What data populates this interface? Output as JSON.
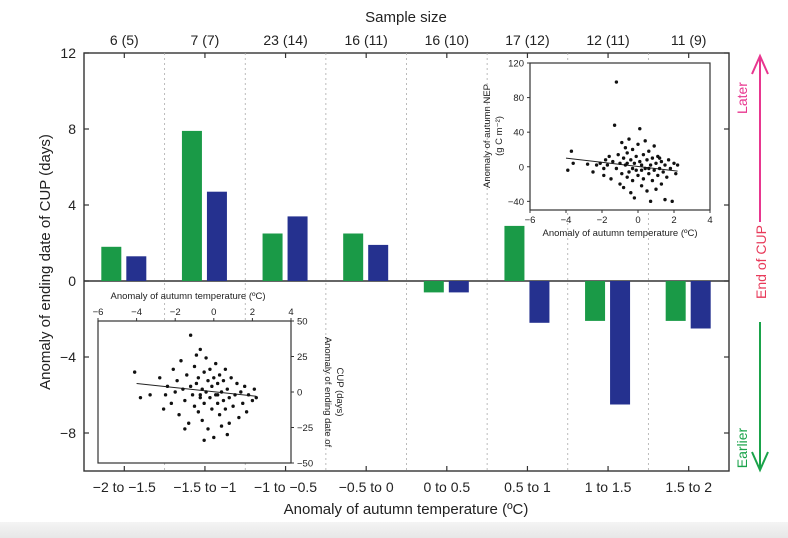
{
  "chart_data": {
    "type": "bar",
    "title": "Sample size",
    "xlabel": "Anomaly of autumn temperature (ºC)",
    "ylabel": "Anomaly of ending date of CUP (days)",
    "ylim": [
      -10,
      12
    ],
    "yticks": [
      "12",
      "8",
      "4",
      "0",
      "−4",
      "−8"
    ],
    "categories": [
      "−2 to −1.5",
      "−1.5 to −1",
      "−1 to −0.5",
      "−0.5 to 0",
      "0 to 0.5",
      "0.5 to 1",
      "1 to 1.5",
      "1.5 to 2"
    ],
    "sample_sizes": [
      "6 (5)",
      "7 (7)",
      "23 (14)",
      "16 (11)",
      "16 (10)",
      "17 (12)",
      "12 (11)",
      "11 (9)"
    ],
    "series": [
      {
        "name": "green",
        "color": "#1a9a47",
        "values": [
          1.8,
          7.9,
          2.5,
          2.5,
          -0.6,
          2.9,
          -2.1,
          -2.1
        ]
      },
      {
        "name": "blue",
        "color": "#25318f",
        "values": [
          1.3,
          4.7,
          3.4,
          1.9,
          -0.6,
          -2.2,
          -6.5,
          -2.5
        ]
      }
    ],
    "side_labels": {
      "later": "Later",
      "end_of_cup": "End of CUP",
      "earlier": "Earlier"
    },
    "side_colors": {
      "later": "#e8368f",
      "middle": "#e83a5a",
      "earlier": "#1aa34a"
    },
    "insets": [
      {
        "type": "scatter",
        "xlabel": "Anomaly of autumn temperature (ºC)",
        "ylabel_line1": "Anomaly of autumn NEP",
        "ylabel_line2": "(g C m⁻²)",
        "xlim": [
          -6,
          4
        ],
        "ylim": [
          -50,
          120
        ],
        "xticks": [
          "−6",
          "−4",
          "−2",
          "0",
          "2",
          "4"
        ],
        "yticks": [
          "120",
          "80",
          "40",
          "0",
          "−40"
        ],
        "trend": [
          [
            -4,
            10
          ],
          [
            2.2,
            -5
          ]
        ],
        "points": [
          [
            -3.9,
            -4
          ],
          [
            -3.7,
            18
          ],
          [
            -3.6,
            4
          ],
          [
            -2.8,
            3
          ],
          [
            -2.5,
            -6
          ],
          [
            -2.3,
            2
          ],
          [
            -2.1,
            4
          ],
          [
            -1.9,
            -10
          ],
          [
            -1.8,
            8
          ],
          [
            -1.7,
            2
          ],
          [
            -1.6,
            12
          ],
          [
            -1.5,
            -14
          ],
          [
            -1.4,
            6
          ],
          [
            -1.3,
            48
          ],
          [
            -1.2,
            -2
          ],
          [
            -1.2,
            98
          ],
          [
            -1.1,
            14
          ],
          [
            -1.0,
            -20
          ],
          [
            -1.0,
            4
          ],
          [
            -0.9,
            28
          ],
          [
            -0.9,
            -8
          ],
          [
            -0.8,
            10
          ],
          [
            -0.8,
            -24
          ],
          [
            -0.7,
            22
          ],
          [
            -0.7,
            2
          ],
          [
            -0.6,
            -12
          ],
          [
            -0.6,
            16
          ],
          [
            -0.5,
            -6
          ],
          [
            -0.5,
            32
          ],
          [
            -0.4,
            -30
          ],
          [
            -0.4,
            8
          ],
          [
            -0.3,
            -16
          ],
          [
            -0.3,
            20
          ],
          [
            -0.2,
            4
          ],
          [
            -0.2,
            -36
          ],
          [
            -0.1,
            12
          ],
          [
            -0.1,
            -4
          ],
          [
            0.0,
            26
          ],
          [
            0.0,
            -10
          ],
          [
            0.1,
            6
          ],
          [
            0.1,
            44
          ],
          [
            0.2,
            -22
          ],
          [
            0.2,
            2
          ],
          [
            0.3,
            14
          ],
          [
            0.3,
            -14
          ],
          [
            0.4,
            -2
          ],
          [
            0.4,
            30
          ],
          [
            0.5,
            8
          ],
          [
            0.5,
            -28
          ],
          [
            0.6,
            -8
          ],
          [
            0.6,
            18
          ],
          [
            0.7,
            2
          ],
          [
            0.7,
            -40
          ],
          [
            0.8,
            10
          ],
          [
            0.8,
            -16
          ],
          [
            0.9,
            24
          ],
          [
            0.9,
            -4
          ],
          [
            1.0,
            4
          ],
          [
            1.0,
            -26
          ],
          [
            1.1,
            -10
          ],
          [
            1.1,
            12
          ],
          [
            1.2,
            -2
          ],
          [
            1.3,
            -20
          ],
          [
            1.3,
            6
          ],
          [
            1.4,
            -6
          ],
          [
            1.5,
            -38
          ],
          [
            1.5,
            2
          ],
          [
            1.6,
            -12
          ],
          [
            1.7,
            8
          ],
          [
            1.8,
            -2
          ],
          [
            1.9,
            -40
          ],
          [
            2.0,
            4
          ],
          [
            2.1,
            -8
          ],
          [
            2.2,
            2
          ],
          [
            -0.3,
            -2
          ],
          [
            0.2,
            -4
          ],
          [
            -0.6,
            4
          ],
          [
            0.6,
            -2
          ],
          [
            -1.9,
            -2
          ],
          [
            1.2,
            10
          ]
        ]
      },
      {
        "type": "scatter",
        "xlabel": "Anomaly of autumn temperature (ºC)",
        "ylabel_line1": "Anomaly of ending date of",
        "ylabel_line2": "CUP (days)",
        "xlim": [
          -6,
          4
        ],
        "ylim": [
          -50,
          50
        ],
        "xticks": [
          "−6",
          "−4",
          "−2",
          "0",
          "2",
          "4"
        ],
        "yticks": [
          "50",
          "25",
          "0",
          "−25",
          "−50"
        ],
        "trend": [
          [
            -4,
            6
          ],
          [
            2.2,
            -3
          ]
        ],
        "points": [
          [
            -4.1,
            14
          ],
          [
            -3.8,
            -4
          ],
          [
            -3.3,
            -2
          ],
          [
            -2.8,
            10
          ],
          [
            -2.6,
            -12
          ],
          [
            -2.4,
            4
          ],
          [
            -2.2,
            -8
          ],
          [
            -2.1,
            16
          ],
          [
            -2.0,
            0
          ],
          [
            -1.9,
            8
          ],
          [
            -1.8,
            -16
          ],
          [
            -1.7,
            22
          ],
          [
            -1.6,
            2
          ],
          [
            -1.5,
            -6
          ],
          [
            -1.4,
            12
          ],
          [
            -1.3,
            -22
          ],
          [
            -1.2,
            40
          ],
          [
            -1.2,
            4
          ],
          [
            -1.1,
            -2
          ],
          [
            -1.0,
            18
          ],
          [
            -1.0,
            -10
          ],
          [
            -0.9,
            26
          ],
          [
            -0.9,
            6
          ],
          [
            -0.8,
            -14
          ],
          [
            -0.8,
            10
          ],
          [
            -0.7,
            -4
          ],
          [
            -0.7,
            30
          ],
          [
            -0.6,
            2
          ],
          [
            -0.6,
            -20
          ],
          [
            -0.5,
            14
          ],
          [
            -0.5,
            -8
          ],
          [
            -0.4,
            24
          ],
          [
            -0.4,
            0
          ],
          [
            -0.3,
            -26
          ],
          [
            -0.3,
            8
          ],
          [
            -0.2,
            -4
          ],
          [
            -0.2,
            16
          ],
          [
            -0.1,
            -12
          ],
          [
            -0.1,
            4
          ],
          [
            0.0,
            -32
          ],
          [
            0.0,
            10
          ],
          [
            0.1,
            -2
          ],
          [
            0.1,
            20
          ],
          [
            0.2,
            -8
          ],
          [
            0.2,
            6
          ],
          [
            0.3,
            -16
          ],
          [
            0.3,
            12
          ],
          [
            0.4,
            0
          ],
          [
            0.4,
            -24
          ],
          [
            0.5,
            8
          ],
          [
            0.5,
            -6
          ],
          [
            0.6,
            16
          ],
          [
            0.6,
            -12
          ],
          [
            0.7,
            2
          ],
          [
            0.7,
            -30
          ],
          [
            0.8,
            -4
          ],
          [
            0.9,
            10
          ],
          [
            1.0,
            -10
          ],
          [
            1.1,
            -2
          ],
          [
            1.2,
            6
          ],
          [
            1.3,
            -18
          ],
          [
            1.4,
            0
          ],
          [
            1.5,
            -8
          ],
          [
            1.6,
            4
          ],
          [
            1.7,
            -14
          ],
          [
            1.8,
            -2
          ],
          [
            2.0,
            -6
          ],
          [
            2.1,
            2
          ],
          [
            2.2,
            -4
          ],
          [
            -1.5,
            -26
          ],
          [
            -0.5,
            -34
          ],
          [
            0.8,
            -22
          ],
          [
            -2.5,
            -2
          ],
          [
            0.2,
            -2
          ],
          [
            -0.7,
            -2
          ]
        ]
      }
    ]
  }
}
